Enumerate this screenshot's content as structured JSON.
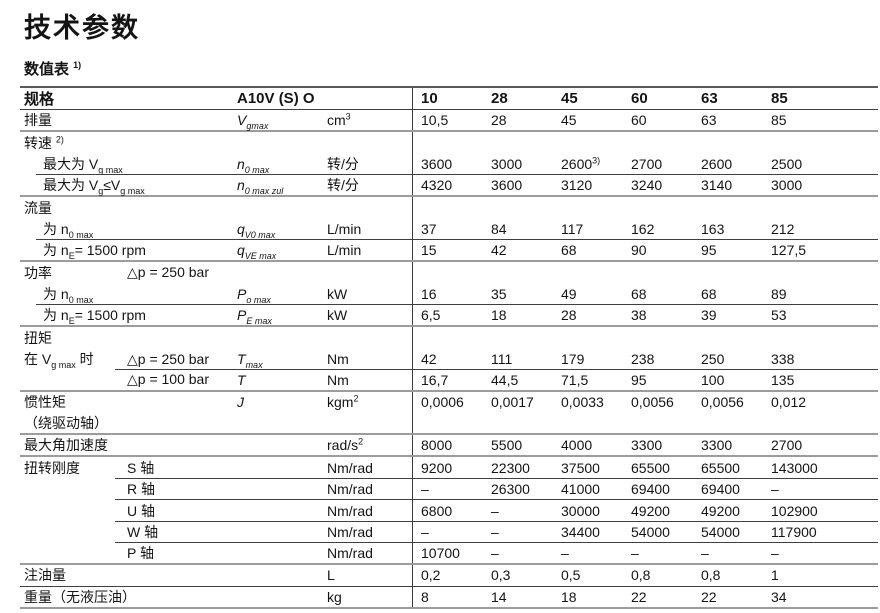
{
  "page": {
    "title": "技术参数",
    "subtitle": "数值表 <sup>1)</sup>"
  },
  "table": {
    "header": {
      "spec": "规格",
      "model": "A10V (S) O",
      "sizes": [
        "10",
        "28",
        "45",
        "60",
        "63",
        "85"
      ]
    },
    "rows": [
      {
        "label": "排量",
        "sym": "V<sub>gmax</sub>",
        "unit": "cm<sup>3</sup>",
        "values": [
          "10,5",
          "28",
          "45",
          "60",
          "63",
          "85"
        ]
      },
      {
        "label": "转速 <sup>2)</sup>"
      },
      {
        "label": "最大为 V<sub>g max</sub>",
        "sym": "n<sub>0 max</sub>",
        "unit": "转/分",
        "values": [
          "3600",
          "3000",
          "2600<sup>3)</sup>",
          "2700",
          "2600",
          "2500"
        ]
      },
      {
        "label": "最大为 V<sub>g</sub>≤V<sub>g max</sub>",
        "sym": "n<sub>0 max zul</sub>",
        "unit": "转/分",
        "values": [
          "4320",
          "3600",
          "3120",
          "3240",
          "3140",
          "3000"
        ]
      },
      {
        "label": "流量"
      },
      {
        "label": "为 n<sub>0 max</sub>",
        "sym": "q<sub>V0 max</sub>",
        "unit": "L/min",
        "values": [
          "37",
          "84",
          "117",
          "162",
          "163",
          "212"
        ]
      },
      {
        "label": "为 n<sub>E</sub>= 1500 rpm",
        "sym": "q<sub>VE max</sub>",
        "unit": "L/min",
        "values": [
          "15",
          "42",
          "68",
          "90",
          "95",
          "127,5"
        ]
      },
      {
        "main": "功率",
        "sub": "△p = 250 bar"
      },
      {
        "label": "为 n<sub>0 max</sub>",
        "sym": "P<sub>o max</sub>",
        "unit": "kW",
        "values": [
          "16",
          "35",
          "49",
          "68",
          "68",
          "89"
        ]
      },
      {
        "label": "为 n<sub>E</sub>= 1500 rpm",
        "sym": "P<sub>E max</sub>",
        "unit": "kW",
        "values": [
          "6,5",
          "18",
          "28",
          "38",
          "39",
          "53"
        ]
      },
      {
        "label": "扭矩"
      },
      {
        "main": "在 V<sub>g max</sub> 时",
        "sub": "△p = 250 bar",
        "sym": "T<sub>max</sub>",
        "unit": "Nm",
        "values": [
          "42",
          "111",
          "179",
          "238",
          "250",
          "338"
        ]
      },
      {
        "main": "",
        "sub": "△p = 100 bar",
        "sym": "T",
        "unit": "Nm",
        "values": [
          "16,7",
          "44,5",
          "71,5",
          "95",
          "100",
          "135"
        ]
      },
      {
        "label": "惯性矩",
        "sym": "J",
        "unit": "kgm<sup>2</sup>",
        "values": [
          "0,0006",
          "0,0017",
          "0,0033",
          "0,0056",
          "0,0056",
          "0,012"
        ]
      },
      {
        "label": "（绕驱动轴）"
      },
      {
        "label": "最大角加速度",
        "sym": "",
        "unit": "rad/s<sup>2</sup>",
        "values": [
          "8000",
          "5500",
          "4000",
          "3300",
          "3300",
          "2700"
        ]
      },
      {
        "main": "扭转刚度",
        "sub": "S 轴",
        "sym": "",
        "unit": "Nm/rad",
        "values": [
          "9200",
          "22300",
          "37500",
          "65500",
          "65500",
          "143000"
        ]
      },
      {
        "main": "",
        "sub": "R 轴",
        "sym": "",
        "unit": "Nm/rad",
        "values": [
          "–",
          "26300",
          "41000",
          "69400",
          "69400",
          "–"
        ]
      },
      {
        "main": "",
        "sub": "U 轴",
        "sym": "",
        "unit": "Nm/rad",
        "values": [
          "6800",
          "–",
          "30000",
          "49200",
          "49200",
          "102900"
        ]
      },
      {
        "main": "",
        "sub": "W 轴",
        "sym": "",
        "unit": "Nm/rad",
        "values": [
          "–",
          "–",
          "34400",
          "54000",
          "54000",
          "117900"
        ]
      },
      {
        "main": "",
        "sub": "P 轴",
        "sym": "",
        "unit": "Nm/rad",
        "values": [
          "10700",
          "–",
          "–",
          "–",
          "–",
          "–"
        ]
      },
      {
        "label": "注油量",
        "sym": "",
        "unit": "L",
        "values": [
          "0,2",
          "0,3",
          "0,5",
          "0,8",
          "0,8",
          "1"
        ]
      },
      {
        "label": "重量（无液压油）",
        "sym": "",
        "unit": "kg",
        "values": [
          "8",
          "14",
          "18",
          "22",
          "22",
          "34"
        ]
      }
    ]
  }
}
